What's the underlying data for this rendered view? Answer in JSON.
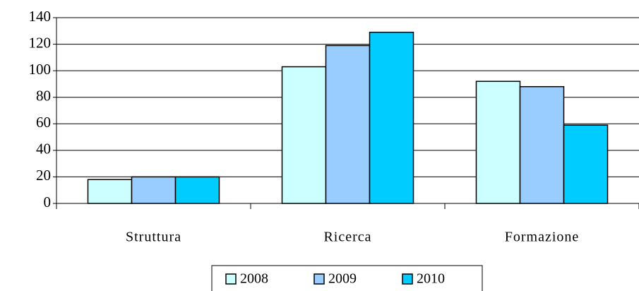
{
  "chart_data": {
    "type": "bar",
    "categories": [
      "Struttura",
      "Ricerca",
      "Formazione"
    ],
    "series": [
      {
        "name": "2008",
        "color": "#ccffff",
        "values": [
          18,
          103,
          92
        ]
      },
      {
        "name": "2009",
        "color": "#99ccff",
        "values": [
          20,
          119,
          88
        ]
      },
      {
        "name": "2010",
        "color": "#00ccff",
        "values": [
          20,
          129,
          59
        ]
      }
    ],
    "ylim": [
      0,
      140
    ],
    "yticks": [
      0,
      20,
      40,
      60,
      80,
      100,
      120,
      140
    ],
    "grid": true,
    "legend": "bottom"
  }
}
